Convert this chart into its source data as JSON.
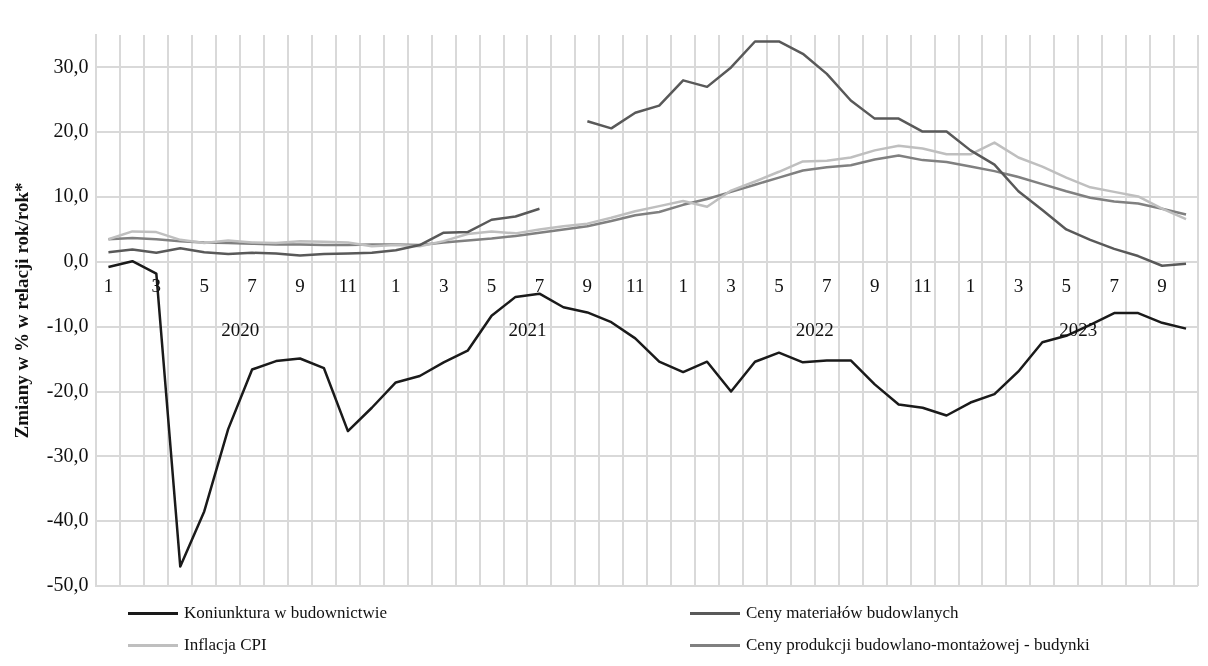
{
  "chart_data": {
    "type": "line",
    "ylabel": "Zmiany w % w relacji rok/rok*",
    "categories": [
      "1",
      null,
      "3",
      null,
      "5",
      null,
      "7",
      null,
      "9",
      null,
      "11",
      null,
      "1",
      null,
      "3",
      null,
      "5",
      null,
      "7",
      null,
      "9",
      null,
      "11",
      null,
      "1",
      null,
      "3",
      null,
      "5",
      null,
      "7",
      null,
      "9",
      null,
      "11",
      null,
      "1",
      null,
      "3",
      null,
      "5",
      null,
      "7",
      null,
      "9",
      null
    ],
    "series": [
      {
        "name": "Koniunktura w budownictwie",
        "color": "#1a1a1a",
        "values": [
          -0.8,
          0.1,
          -1.8,
          -47.0,
          -38.5,
          -25.8,
          -16.6,
          -15.3,
          -14.9,
          -16.4,
          -26.1,
          -22.5,
          -18.6,
          -17.6,
          -15.5,
          -13.7,
          -8.3,
          -5.4,
          -4.9,
          -7.0,
          -7.8,
          -9.3,
          -11.8,
          -15.4,
          -17.0,
          -15.4,
          -20.0,
          -15.4,
          -14.0,
          -15.5,
          -15.2,
          -15.2,
          -18.9,
          -22.0,
          -22.5,
          -23.7,
          -21.7,
          -20.4,
          -16.9,
          -12.4,
          -11.4,
          -9.7,
          -7.9,
          -7.9,
          -9.4,
          -10.3
        ]
      },
      {
        "name": "Ceny materiałów budowlanych",
        "color": "#595959",
        "values": [
          1.5,
          1.9,
          1.4,
          2.1,
          1.5,
          1.2,
          1.4,
          1.3,
          1.0,
          1.2,
          1.3,
          1.4,
          1.8,
          2.6,
          4.5,
          4.6,
          6.5,
          7.0,
          8.2,
          null,
          21.7,
          20.6,
          23.0,
          24.1,
          28.0,
          27.0,
          30.0,
          34.0,
          34.0,
          32.1,
          29.0,
          24.9,
          22.1,
          22.1,
          20.1,
          20.1,
          17.2,
          15.0,
          10.9,
          8.0,
          5.0,
          3.4,
          2.0,
          0.9,
          -0.6,
          -0.3
        ]
      },
      {
        "name": "Inflacja CPI",
        "color": "#bfbfbf",
        "values": [
          3.5,
          4.7,
          4.6,
          3.4,
          2.9,
          3.3,
          3.0,
          2.9,
          3.2,
          3.1,
          3.0,
          2.4,
          2.6,
          2.4,
          3.2,
          4.3,
          4.7,
          4.4,
          5.0,
          5.5,
          5.9,
          6.8,
          7.8,
          8.6,
          9.4,
          8.5,
          11.0,
          12.4,
          13.9,
          15.5,
          15.6,
          16.1,
          17.2,
          17.9,
          17.5,
          16.6,
          16.6,
          18.4,
          16.1,
          14.7,
          13.0,
          11.5,
          10.8,
          10.1,
          8.2,
          6.6
        ]
      },
      {
        "name": "Ceny produkcji budowlano-montażowej - budynki",
        "color": "#808080",
        "values": [
          3.5,
          3.7,
          3.5,
          3.2,
          3.0,
          2.9,
          2.8,
          2.7,
          2.7,
          2.6,
          2.6,
          2.7,
          2.7,
          2.6,
          3.0,
          3.3,
          3.6,
          4.0,
          4.5,
          5.0,
          5.5,
          6.3,
          7.2,
          7.7,
          8.8,
          9.7,
          10.8,
          11.9,
          13.0,
          14.1,
          14.6,
          14.9,
          15.8,
          16.4,
          15.7,
          15.4,
          14.7,
          14.0,
          13.1,
          12.0,
          10.9,
          9.9,
          9.3,
          9.0,
          8.2,
          7.3
        ]
      }
    ],
    "ylim": [
      -50,
      35
    ],
    "yticks": [
      {
        "value": -50,
        "label": "-50,0"
      },
      {
        "value": -40,
        "label": "-40,0"
      },
      {
        "value": -30,
        "label": "-30,0"
      },
      {
        "value": -20,
        "label": "-20,0"
      },
      {
        "value": -10,
        "label": "-10,0"
      },
      {
        "value": 0,
        "label": "0,0"
      },
      {
        "value": 10,
        "label": "10,0"
      },
      {
        "value": 20,
        "label": "20,0"
      },
      {
        "value": 30,
        "label": "30,0"
      }
    ],
    "annotations": [
      "2020",
      "2021",
      "2022",
      "2023"
    ],
    "grid": true,
    "legend": "bottom",
    "marker": "none",
    "line_style": "solid"
  }
}
